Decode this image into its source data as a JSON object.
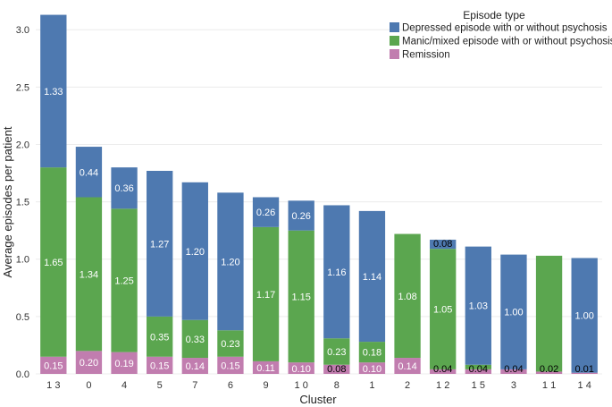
{
  "chart_data": {
    "type": "bar",
    "stacked": true,
    "xlabel": "Cluster",
    "ylabel": "Average episodes per patient",
    "ylim": [
      0,
      3.15
    ],
    "yticks": [
      "0.0",
      "0.5",
      "1.0",
      "1.5",
      "2.0",
      "2.5",
      "3.0"
    ],
    "grid": true,
    "legend_position": "top-right",
    "categories": [
      "1 3",
      "0",
      "4",
      "5",
      "7",
      "6",
      "9",
      "1 0",
      "8",
      "1",
      "2",
      "1 2",
      "1 5",
      "3",
      "1 1",
      "1 4"
    ],
    "legend": {
      "title": "Episode type",
      "entries": [
        "Depressed episode with or without psychosis",
        "Manic/mixed episode with or without psychosis",
        "Remission"
      ]
    },
    "series": [
      {
        "name": "Remission",
        "color": "#c17daf",
        "values": [
          0.15,
          0.2,
          0.19,
          0.15,
          0.14,
          0.15,
          0.11,
          0.1,
          0.08,
          0.1,
          0.14,
          0.04,
          0.04,
          0.04,
          0.02,
          0.01
        ],
        "labels": [
          "0.15",
          "0.20",
          "0.19",
          "0.15",
          "0.14",
          "0.15",
          "0.11",
          "0.10",
          "0.08",
          "0.10",
          "0.14",
          "0.04",
          "0.04",
          "0.04",
          "0.02",
          "0.01"
        ]
      },
      {
        "name": "Manic/mixed episode with or without psychosis",
        "color": "#5ba64f",
        "values": [
          1.65,
          1.34,
          1.25,
          0.35,
          0.33,
          0.23,
          1.17,
          1.15,
          0.23,
          0.18,
          1.08,
          1.05,
          0.04,
          0,
          1.01,
          0
        ],
        "labels": [
          "1.65",
          "1.34",
          "1.25",
          "0.35",
          "0.33",
          "0.23",
          "1.17",
          "1.15",
          "0.23",
          "0.18",
          "1.08",
          "1.05",
          "",
          "",
          "",
          ""
        ]
      },
      {
        "name": "Depressed episode with or without psychosis",
        "color": "#4e79b0",
        "values": [
          1.33,
          0.44,
          0.36,
          1.27,
          1.2,
          1.2,
          0.26,
          0.26,
          1.16,
          1.14,
          0,
          0.08,
          1.03,
          1.0,
          0,
          1.0
        ],
        "labels": [
          "1.33",
          "0.44",
          "0.36",
          "1.27",
          "1.20",
          "1.20",
          "0.26",
          "0.26",
          "1.16",
          "1.14",
          "",
          "0.08",
          "1.03",
          "1.00",
          "",
          "1.00"
        ]
      }
    ]
  }
}
